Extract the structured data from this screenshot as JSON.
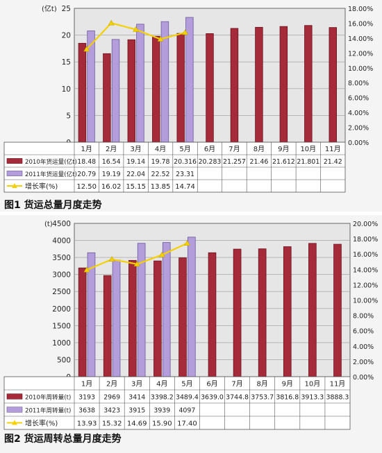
{
  "colors": {
    "s2010": "#a52a3a",
    "s2010_dark": "#6b1420",
    "s2011": "#b39ddb",
    "s2011_dark": "#6a5a9a",
    "growth": "#f5d000",
    "plot_bg": "#e6e6e6",
    "grid": "#999999"
  },
  "chart_data": [
    {
      "type": "bar",
      "title": "图1  货运总量月度走势",
      "y_unit": "(亿t)",
      "ylim": [
        0,
        25
      ],
      "y_ticks": [
        "0",
        "5",
        "10",
        "15",
        "20",
        "25"
      ],
      "y2lim": [
        0,
        18
      ],
      "y2_ticks": [
        "0.00%",
        "2.00%",
        "4.00%",
        "6.00%",
        "8.00%",
        "10.00%",
        "12.00%",
        "14.00%",
        "16.00%",
        "18.00%"
      ],
      "categories": [
        "1月",
        "2月",
        "3月",
        "4月",
        "5月",
        "6月",
        "7月",
        "8月",
        "9月",
        "10月",
        "11月"
      ],
      "series": [
        {
          "name": "2010年货运量(亿t)",
          "kind": "bar",
          "values": [
            18.48,
            16.54,
            19.14,
            19.78,
            20.316,
            20.283,
            21.257,
            21.46,
            21.612,
            21.801,
            21.42
          ],
          "labels": [
            "18.48",
            "16.54",
            "19.14",
            "19.78",
            "20.316",
            "20.283",
            "21.257",
            "21.46",
            "21.612",
            "21.801",
            "21.42"
          ]
        },
        {
          "name": "2011年货运量(亿t)",
          "kind": "bar",
          "values": [
            20.79,
            19.19,
            22.04,
            22.52,
            23.31,
            null,
            null,
            null,
            null,
            null,
            null
          ],
          "labels": [
            "20.79",
            "19.19",
            "22.04",
            "22.52",
            "23.31",
            "",
            "",
            "",
            "",
            "",
            ""
          ]
        },
        {
          "name": "增长率(%)",
          "kind": "line",
          "axis": "right",
          "values": [
            12.5,
            16.02,
            15.15,
            13.85,
            14.74,
            null,
            null,
            null,
            null,
            null,
            null
          ],
          "labels": [
            "12.50",
            "16.02",
            "15.15",
            "13.85",
            "14.74",
            "",
            "",
            "",
            "",
            "",
            ""
          ]
        }
      ]
    },
    {
      "type": "bar",
      "title": "图2  货运周转总量月度走势",
      "y_unit": "(t)",
      "ylim": [
        0,
        4500
      ],
      "y_ticks": [
        "0",
        "500",
        "1000",
        "1500",
        "2000",
        "2500",
        "3000",
        "3500",
        "4000",
        "4500"
      ],
      "y2lim": [
        0,
        20
      ],
      "y2_ticks": [
        "0.00%",
        "2.00%",
        "4.00%",
        "6.00%",
        "8.00%",
        "10.00%",
        "12.00%",
        "14.00%",
        "16.00%",
        "18.00%",
        "20.00%"
      ],
      "categories": [
        "1月",
        "2月",
        "3月",
        "4月",
        "5月",
        "6月",
        "7月",
        "8月",
        "9月",
        "10月",
        "11月"
      ],
      "series": [
        {
          "name": "2010年周转量(t)",
          "kind": "bar",
          "values": [
            3193,
            2969,
            3414,
            3398.2,
            3489.4,
            3639.0,
            3744.8,
            3753.7,
            3816.8,
            3913.3,
            3888.3
          ],
          "labels": [
            "3193",
            "2969",
            "3414",
            "3398.2",
            "3489.4",
            "3639.0",
            "3744.8",
            "3753.7",
            "3816.8",
            "3913.3",
            "3888.3"
          ]
        },
        {
          "name": "2011年周转量(t)",
          "kind": "bar",
          "values": [
            3638,
            3423,
            3915,
            3939,
            4097,
            null,
            null,
            null,
            null,
            null,
            null
          ],
          "labels": [
            "3638",
            "3423",
            "3915",
            "3939",
            "4097",
            "",
            "",
            "",
            "",
            "",
            ""
          ]
        },
        {
          "name": "增长率(%)",
          "kind": "line",
          "axis": "right",
          "values": [
            13.93,
            15.32,
            14.69,
            15.9,
            17.4,
            null,
            null,
            null,
            null,
            null,
            null
          ],
          "labels": [
            "13.93",
            "15.32",
            "14.69",
            "15.90",
            "17.40",
            "",
            "",
            "",
            "",
            "",
            ""
          ]
        }
      ]
    }
  ]
}
